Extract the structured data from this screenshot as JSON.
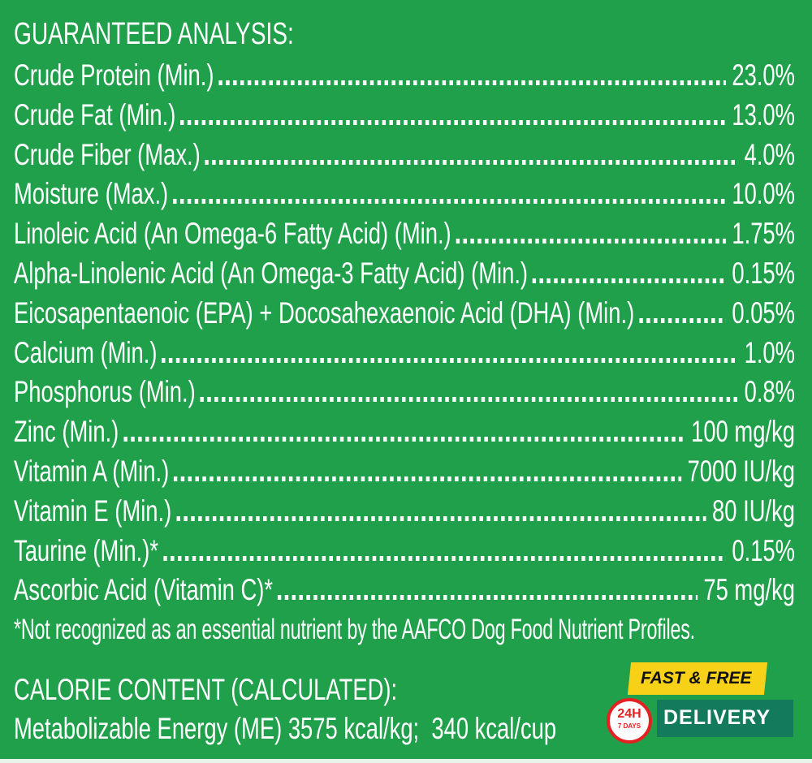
{
  "heading": "GUARANTEED ANALYSIS:",
  "rows": [
    {
      "label": "Crude Protein (Min.)",
      "value": "23.0%"
    },
    {
      "label": "Crude Fat (Min.)",
      "value": "13.0%"
    },
    {
      "label": "Crude Fiber (Max.)",
      "value": "4.0%"
    },
    {
      "label": "Moisture (Max.)",
      "value": "10.0%"
    },
    {
      "label": "Linoleic Acid (An Omega-6 Fatty Acid) (Min.)",
      "value": "1.75%"
    },
    {
      "label": "Alpha-Linolenic Acid (An Omega-3 Fatty Acid) (Min.)",
      "value": "0.15%"
    },
    {
      "label": "Eicosapentaenoic (EPA) + Docosahexaenoic Acid (DHA) (Min.)",
      "value": "0.05%"
    },
    {
      "label": "Calcium (Min.)",
      "value": "1.0%"
    },
    {
      "label": "Phosphorus (Min.)",
      "value": "0.8%"
    },
    {
      "label": "Zinc (Min.)",
      "value": "100 mg/kg"
    },
    {
      "label": "Vitamin A (Min.)",
      "value": "7000 IU/kg"
    },
    {
      "label": "Vitamin E (Min.)",
      "value": "80 IU/kg"
    },
    {
      "label": "Taurine (Min.)*",
      "value": "0.15%"
    },
    {
      "label": "Ascorbic Acid (Vitamin C)*",
      "value": "75 mg/kg"
    }
  ],
  "footnote": "*Not recognized as an essential nutrient by the AAFCO Dog Food Nutrient Profiles.",
  "calorie": {
    "heading": "CALORIE CONTENT (CALCULATED):",
    "text": "Metabolizable Energy (ME) 3575 kcal/kg;  340 kcal/cup"
  },
  "badge": {
    "line1": "FAST & FREE",
    "line2": "DELIVERY",
    "hours": "24H",
    "days": "7 DAYS"
  },
  "colors": {
    "background": "#20a04b",
    "badge_yellow": "#f7d117",
    "badge_teal": "#137a5b",
    "badge_red": "#e42020"
  }
}
